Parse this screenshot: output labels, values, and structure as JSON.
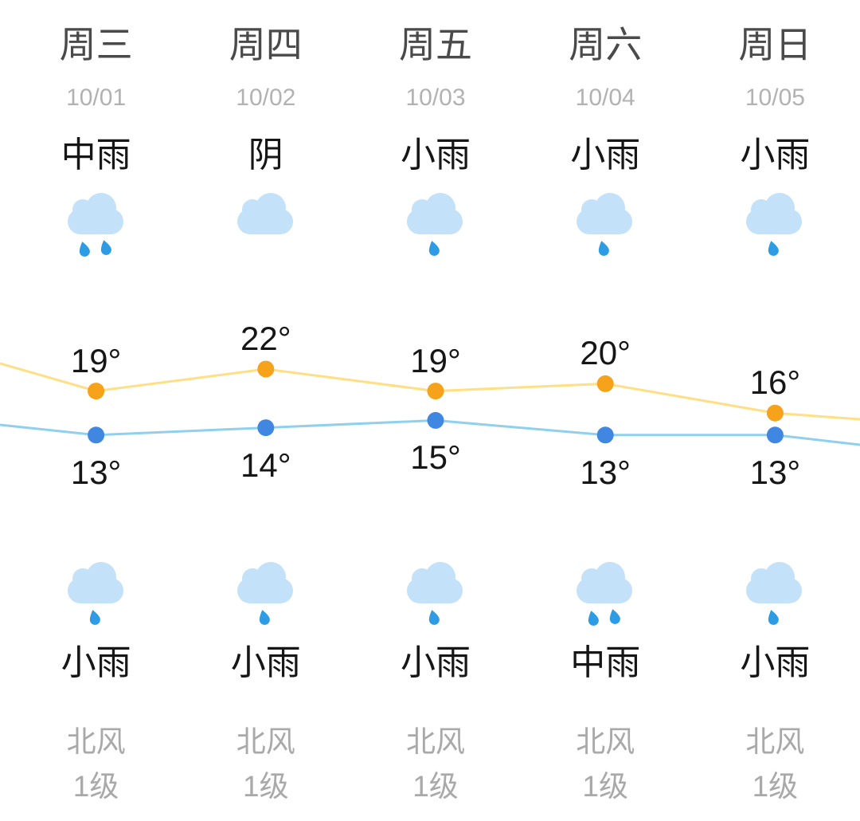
{
  "colors": {
    "background": "#ffffff",
    "day_name_text": "#4a4a4a",
    "date_text": "#b2b2b2",
    "condition_text": "#161616",
    "temp_text": "#161616",
    "wind_text": "#a9a9a9",
    "cloud": "#c3e1f8",
    "raindrop": "#2e9be5",
    "high_line": "#ffdf85",
    "high_dot": "#f6a21b",
    "low_line": "#8fd0ee",
    "low_dot": "#3f87e0"
  },
  "days": [
    {
      "name": "周三",
      "date": "10/01",
      "day_condition": "中雨",
      "day_icon": "cloud-moderate-rain-icon",
      "day_drops": 2,
      "high": 19,
      "low": 13,
      "night_condition": "小雨",
      "night_icon": "cloud-light-rain-icon",
      "night_drops": 1,
      "wind_direction": "北风",
      "wind_level": "1级"
    },
    {
      "name": "周四",
      "date": "10/02",
      "day_condition": "阴",
      "day_icon": "overcast-cloud-icon",
      "day_drops": 0,
      "high": 22,
      "low": 14,
      "night_condition": "小雨",
      "night_icon": "cloud-light-rain-icon",
      "night_drops": 1,
      "wind_direction": "北风",
      "wind_level": "1级"
    },
    {
      "name": "周五",
      "date": "10/03",
      "day_condition": "小雨",
      "day_icon": "cloud-light-rain-icon",
      "day_drops": 1,
      "high": 19,
      "low": 15,
      "night_condition": "小雨",
      "night_icon": "cloud-light-rain-icon",
      "night_drops": 1,
      "wind_direction": "北风",
      "wind_level": "1级"
    },
    {
      "name": "周六",
      "date": "10/04",
      "day_condition": "小雨",
      "day_icon": "cloud-light-rain-icon",
      "day_drops": 1,
      "high": 20,
      "low": 13,
      "night_condition": "中雨",
      "night_icon": "cloud-moderate-rain-icon",
      "night_drops": 2,
      "wind_direction": "北风",
      "wind_level": "1级"
    },
    {
      "name": "周日",
      "date": "10/05",
      "day_condition": "小雨",
      "day_icon": "cloud-light-rain-icon",
      "day_drops": 1,
      "high": 16,
      "low": 13,
      "night_condition": "小雨",
      "night_icon": "cloud-light-rain-icon",
      "night_drops": 1,
      "wind_direction": "北风",
      "wind_level": "1级"
    }
  ],
  "chart_data": {
    "type": "line",
    "categories": [
      "10/01",
      "10/02",
      "10/03",
      "10/04",
      "10/05"
    ],
    "series": [
      {
        "name": "day-high-temperature",
        "values": [
          19,
          22,
          19,
          20,
          16
        ],
        "line_color": "#ffdf85",
        "dot_color": "#f6a21b"
      },
      {
        "name": "night-low-temperature",
        "values": [
          13,
          14,
          15,
          13,
          13
        ],
        "line_color": "#8fd0ee",
        "dot_color": "#3f87e0"
      }
    ],
    "unit": "°",
    "ylim": [
      11,
      24
    ],
    "grid": false,
    "legend_position": "none",
    "extends_offscreen": true
  }
}
